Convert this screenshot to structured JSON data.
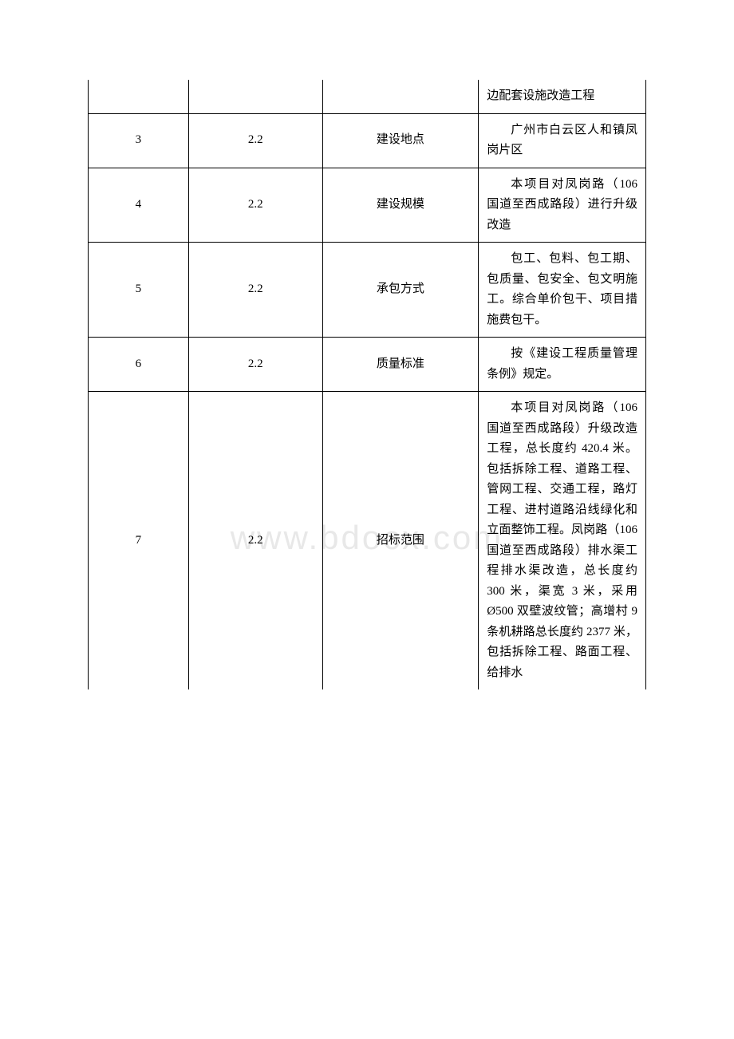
{
  "watermark": "www.bdocx.com",
  "table": {
    "rows": [
      {
        "c1": "",
        "c2": "",
        "c3": "",
        "c4": "边配套设施改造工程"
      },
      {
        "c1": "3",
        "c2": "2.2",
        "c3": "建设地点",
        "c4": "广州市白云区人和镇凤岗片区"
      },
      {
        "c1": "4",
        "c2": "2.2",
        "c3": "建设规模",
        "c4": "本项目对凤岗路（106 国道至西成路段）进行升级改造"
      },
      {
        "c1": "5",
        "c2": "2.2",
        "c3": "承包方式",
        "c4": "包工、包料、包工期、包质量、包安全、包文明施工。综合单价包干、项目措施费包干。"
      },
      {
        "c1": "6",
        "c2": "2.2",
        "c3": "质量标准",
        "c4": "按《建设工程质量管理条例》规定。"
      },
      {
        "c1": "7",
        "c2": "2.2",
        "c3": "招标范围",
        "c4": "本项目对凤岗路（106 国道至西成路段）升级改造工程，总长度约 420.4 米。包括拆除工程、道路工程、管网工程、交通工程，路灯工程、进村道路沿线绿化和立面整饰工程。凤岗路（106 国道至西成路段）排水渠工程排水渠改造，总长度约 300 米，渠宽 3 米，采用 Ø500 双壁波纹管；高增村 9 条机耕路总长度约 2377 米，包括拆除工程、路面工程、给排水"
      }
    ]
  }
}
